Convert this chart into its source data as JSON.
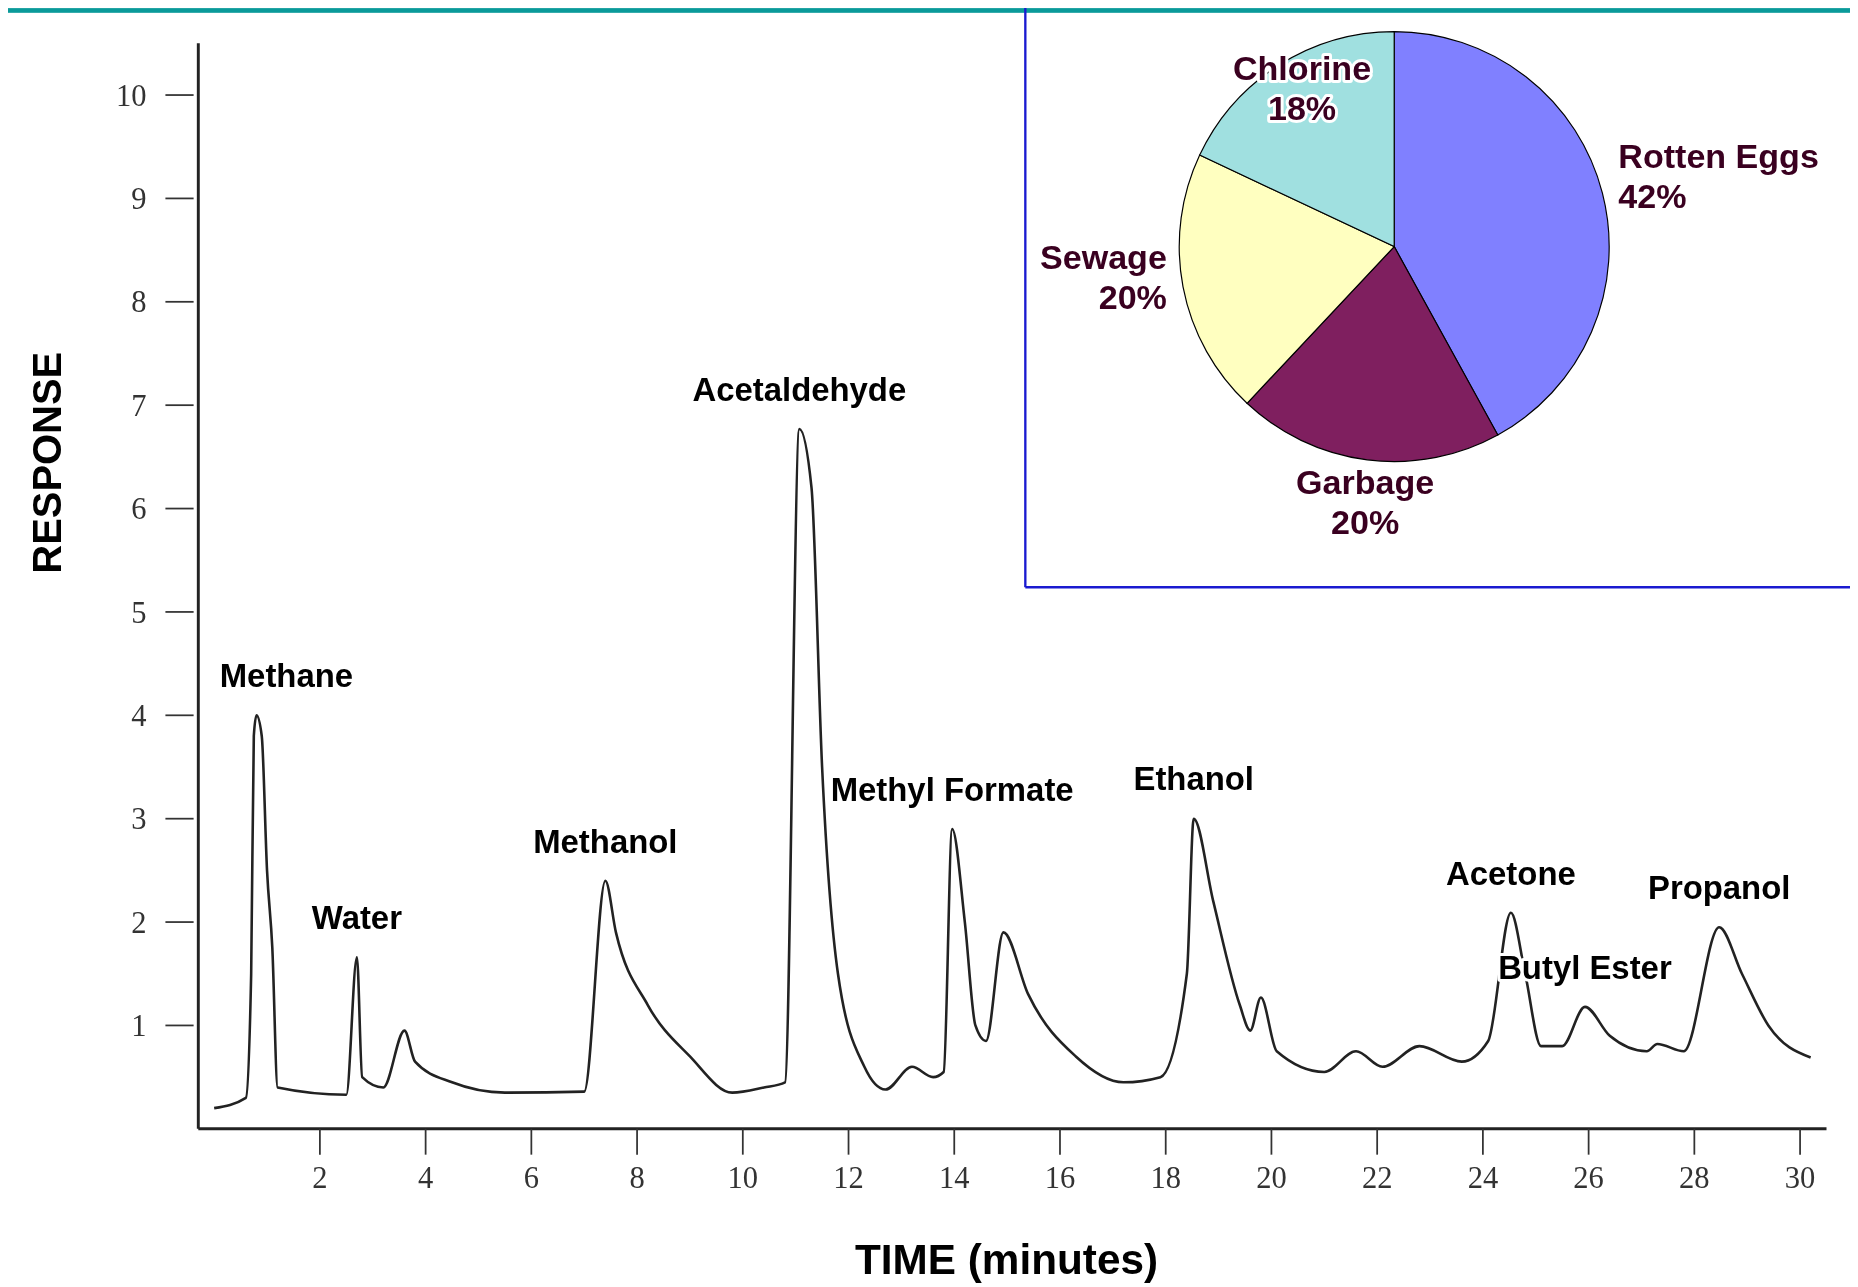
{
  "chart_data": [
    {
      "type": "line",
      "xlabel": "TIME (minutes)",
      "ylabel": "RESPONSE",
      "color": "#222222",
      "xlim": [
        -0.3,
        30.5
      ],
      "ylim": [
        0,
        10.5
      ],
      "xticks": [
        2,
        4,
        6,
        8,
        10,
        12,
        14,
        16,
        18,
        20,
        22,
        24,
        26,
        28,
        30
      ],
      "yticks": [
        1,
        2,
        3,
        4,
        5,
        6,
        7,
        8,
        9,
        10
      ],
      "x": [
        0,
        0.6,
        0.7,
        0.75,
        0.8,
        0.9,
        1.0,
        1.1,
        1.2,
        2.5,
        2.7,
        2.8,
        3.2,
        3.6,
        3.8,
        4.5,
        5.5,
        7.0,
        7.4,
        7.6,
        8.2,
        9.0,
        9.8,
        10.4,
        10.8,
        11.07,
        11.3,
        11.5,
        11.8,
        12.3,
        12.7,
        13.2,
        13.6,
        13.8,
        13.96,
        14.2,
        14.4,
        14.6,
        14.93,
        15.4,
        16.3,
        17.2,
        17.9,
        18.4,
        18.53,
        18.9,
        19.4,
        19.6,
        19.8,
        20.1,
        21.0,
        21.6,
        22.1,
        22.8,
        23.6,
        24.1,
        24.53,
        24.8,
        25.1,
        25.5,
        25.93,
        26.4,
        27.1,
        27.3,
        27.8,
        28.47,
        28.9,
        29.4,
        30.2
      ],
      "values": [
        0.2,
        0.3,
        1.5,
        3.8,
        4.0,
        3.8,
        2.5,
        1.75,
        0.4,
        0.33,
        1.66,
        0.5,
        0.4,
        0.95,
        0.65,
        0.45,
        0.35,
        0.36,
        2.4,
        1.9,
        1.2,
        0.7,
        0.35,
        0.4,
        0.45,
        6.77,
        6.2,
        3.5,
        1.5,
        0.6,
        0.38,
        0.6,
        0.5,
        0.55,
        2.9,
        2.0,
        1.0,
        0.85,
        1.9,
        1.3,
        0.7,
        0.45,
        0.5,
        1.5,
        3.0,
        2.2,
        1.2,
        0.95,
        1.27,
        0.75,
        0.55,
        0.75,
        0.6,
        0.8,
        0.65,
        0.85,
        2.09,
        1.5,
        0.8,
        0.8,
        1.18,
        0.9,
        0.75,
        0.82,
        0.75,
        1.95,
        1.5,
        1.0,
        0.69
      ],
      "annotations": [
        {
          "text": "Methane",
          "x": 0.8,
          "y": 4.0
        },
        {
          "text": "Water",
          "x": 2.7,
          "y": 1.66
        },
        {
          "text": "Methanol",
          "x": 7.4,
          "y": 2.4
        },
        {
          "text": "Acetaldehyde",
          "x": 11.07,
          "y": 6.77
        },
        {
          "text": "Methyl Formate",
          "x": 13.96,
          "y": 2.9
        },
        {
          "text": "Ethanol",
          "x": 18.53,
          "y": 3.0
        },
        {
          "text": "Acetone",
          "x": 24.53,
          "y": 2.09
        },
        {
          "text": "Butyl Ester",
          "x": 25.93,
          "y": 1.18
        },
        {
          "text": "Propanol",
          "x": 28.47,
          "y": 1.95
        }
      ]
    },
    {
      "type": "pie",
      "categories": [
        "Rotten Eggs",
        "Garbage",
        "Sewage",
        "Chlorine"
      ],
      "values": [
        42,
        20,
        20,
        18
      ],
      "colors": [
        "#8080ff",
        "#7f1f5f",
        "#ffffc0",
        "#a0e0e0"
      ],
      "value_labels": [
        "42%",
        "20%",
        "20%",
        "18%"
      ]
    }
  ]
}
